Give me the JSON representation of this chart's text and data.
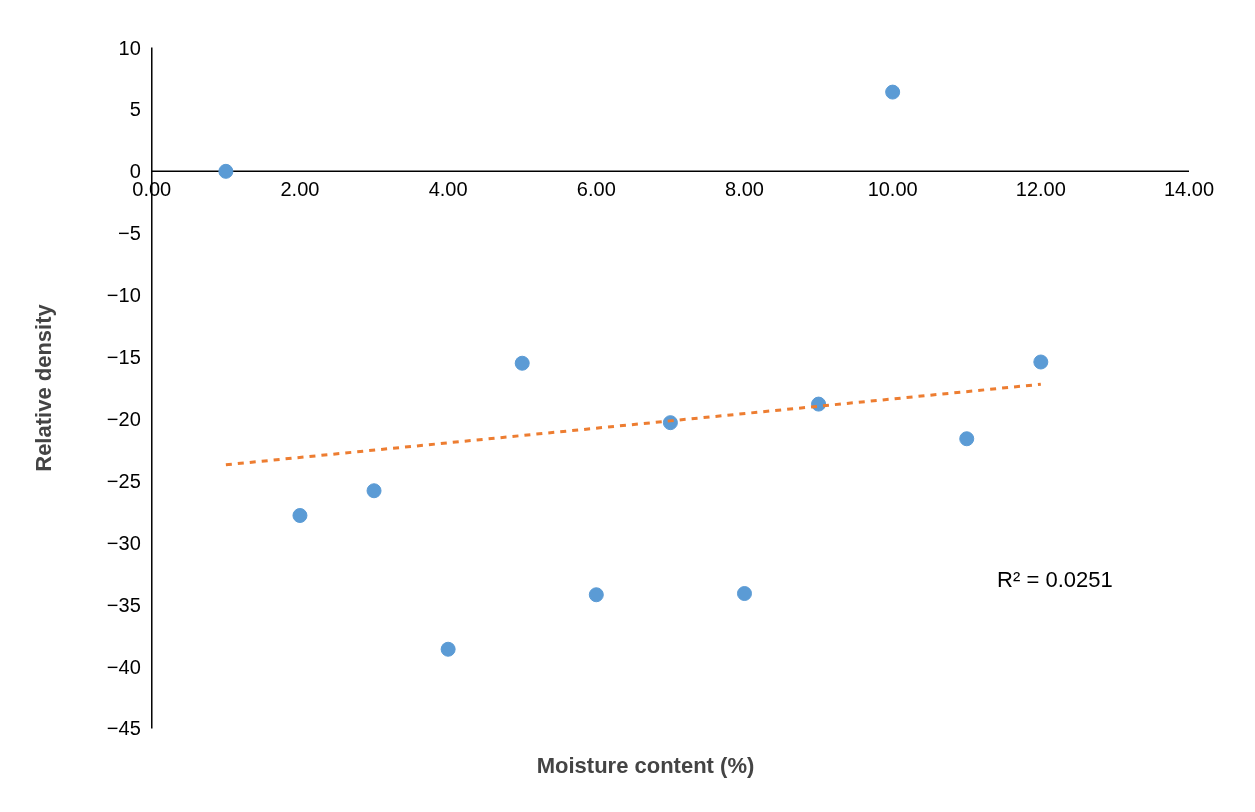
{
  "chart_data": {
    "type": "scatter",
    "xlabel": "Moisture content (%)",
    "ylabel": "Relative density",
    "x": [
      1,
      2,
      3,
      4,
      5,
      6,
      7,
      8,
      9,
      10,
      11,
      12
    ],
    "series": [
      {
        "color": "#5b9bd5",
        "values": [
          0,
          -27.8,
          -25.8,
          -38.6,
          -15.5,
          -34.2,
          -20.3,
          -34.1,
          -18.8,
          6.4,
          -21.6,
          -15.4
        ]
      },
      {
        "type": "line",
        "x": [
          1,
          12
        ],
        "color": "#ed7d31",
        "line_style": "dashed",
        "marker": "none",
        "values": [
          -23.7,
          -17.2
        ]
      }
    ],
    "xlim": [
      0,
      14
    ],
    "xticks": [
      {
        "value": 0,
        "label": "0.00"
      },
      {
        "value": 2,
        "label": "2.00"
      },
      {
        "value": 4,
        "label": "4.00"
      },
      {
        "value": 6,
        "label": "6.00"
      },
      {
        "value": 8,
        "label": "8.00"
      },
      {
        "value": 10,
        "label": "10.00"
      },
      {
        "value": 12,
        "label": "12.00"
      },
      {
        "value": 14,
        "label": "14.00"
      }
    ],
    "ylim": [
      -45,
      10
    ],
    "yticks": [
      -45,
      -40,
      -35,
      -30,
      -25,
      -20,
      -15,
      -10,
      -5,
      0,
      5,
      10
    ],
    "grid": false,
    "marker": "circle",
    "annotations": [
      "R² = 0.0251"
    ]
  }
}
